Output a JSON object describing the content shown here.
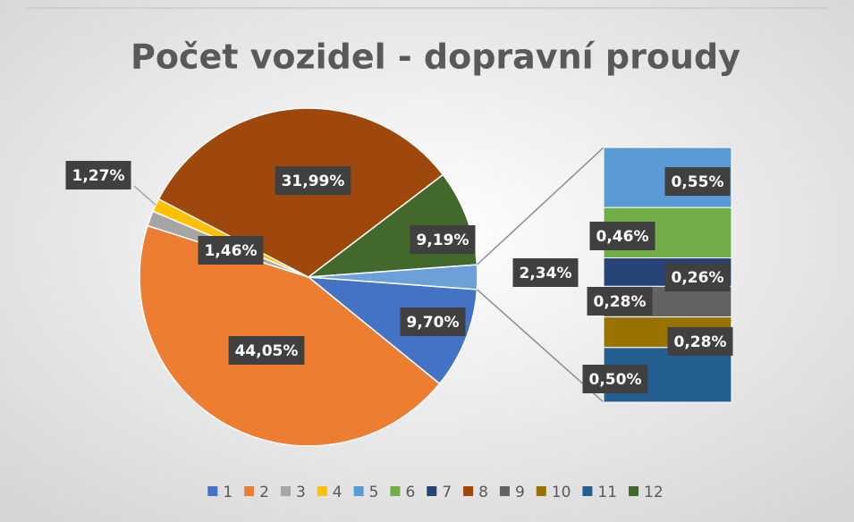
{
  "chart_data": {
    "type": "pie-of-bar",
    "title": "Počet vozidel - dopravní proudy",
    "categories": [
      "1",
      "2",
      "3",
      "4",
      "5",
      "6",
      "7",
      "8",
      "9",
      "10",
      "11",
      "12"
    ],
    "values": [
      9.7,
      44.05,
      1.46,
      1.27,
      0.55,
      0.46,
      0.26,
      31.99,
      0.28,
      0.28,
      0.5,
      9.19
    ],
    "value_labels": [
      "9,70%",
      "44,05%",
      "1,46%",
      "1,27%",
      "0,55%",
      "0,46%",
      "0,26%",
      "31,99%",
      "0,28%",
      "0,28%",
      "0,50%",
      "9,19%"
    ],
    "colors": [
      "#4472c4",
      "#ed7d31",
      "#a5a5a5",
      "#ffc000",
      "#5b9bd5",
      "#70ad47",
      "#264478",
      "#9e480e",
      "#636363",
      "#997300",
      "#255e91",
      "#43682b"
    ],
    "secondary_categories": [
      "5",
      "6",
      "7",
      "9",
      "10",
      "11"
    ],
    "secondary": {
      "value": 2.34,
      "value_label": "2,34%"
    },
    "legend": "bottom"
  }
}
